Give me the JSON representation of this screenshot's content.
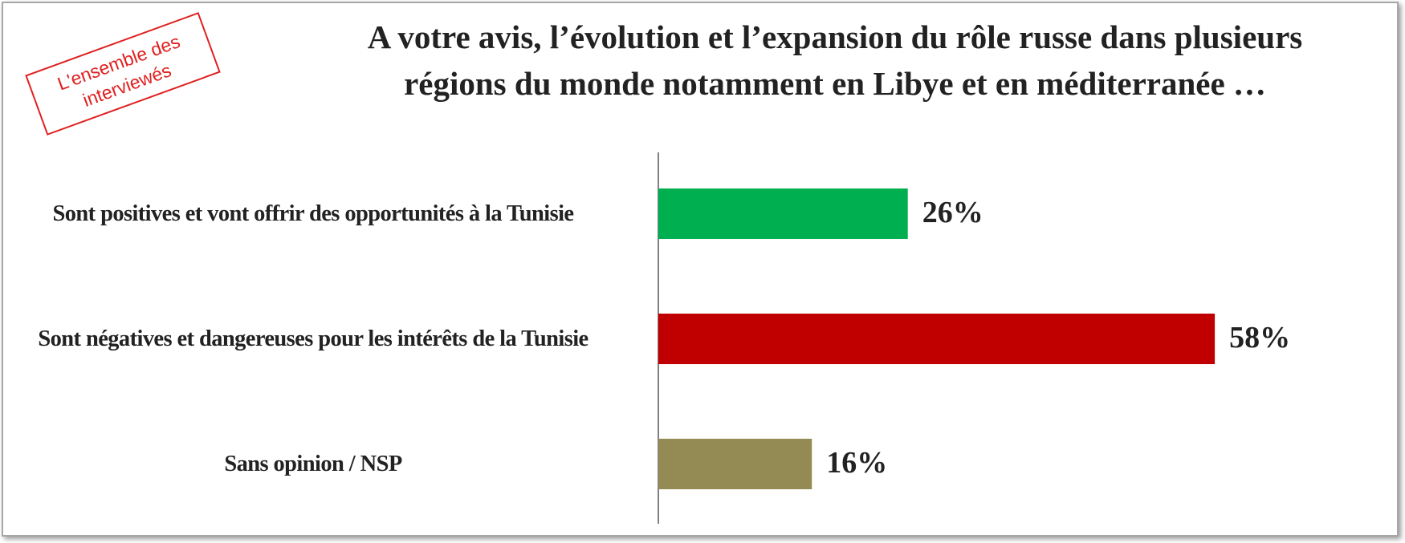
{
  "chart_data": {
    "type": "bar",
    "stamp": "L'ensemble des interviewés",
    "title": [
      "A votre avis, l’évolution et l’expansion du rôle russe dans plusieurs",
      "régions du monde notamment en Libye et en méditerranée …"
    ],
    "categories": [
      "Sont positives et vont offrir des opportunités à la Tunisie",
      "Sont négatives et dangereuses pour les intérêts de la Tunisie",
      "Sans opinion / NSP"
    ],
    "values": [
      26,
      58,
      16
    ],
    "value_labels": [
      "26%",
      "58%",
      "16%"
    ],
    "colors": [
      "#00b050",
      "#c00000",
      "#948a54"
    ]
  }
}
